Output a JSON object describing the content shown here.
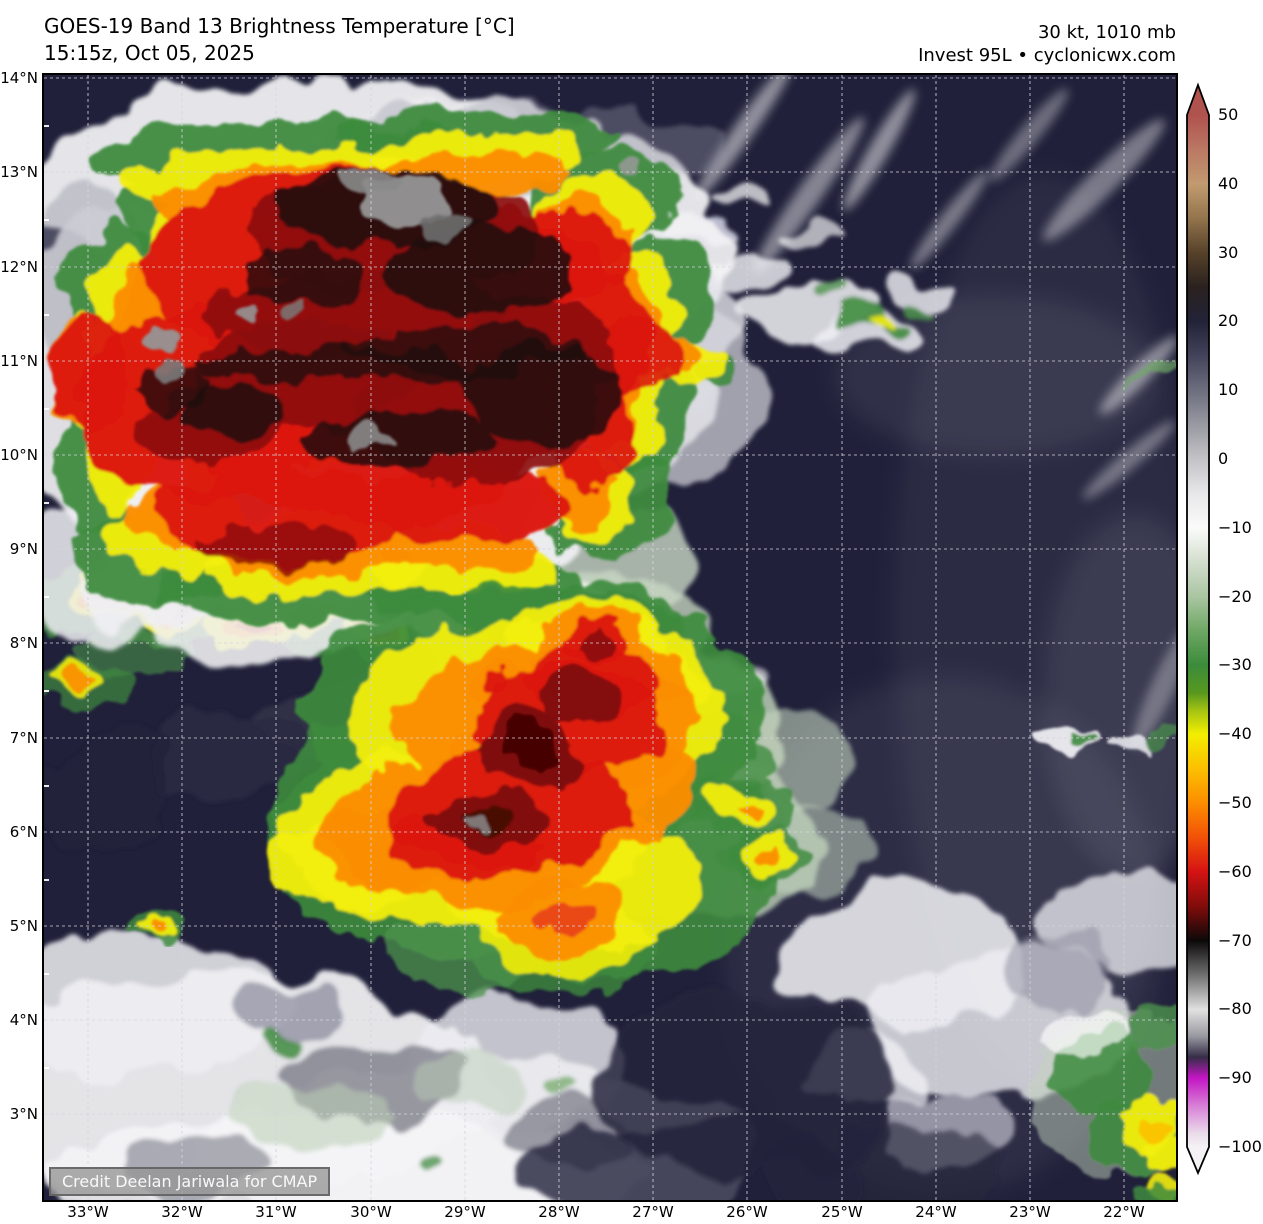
{
  "header": {
    "title": "GOES-19 Band 13 Brightness Temperature [°C]",
    "subtitle": "15:15z, Oct 05, 2025",
    "storm_intensity": "30 kt, 1010 mb",
    "storm_name": "Invest 95L • cyclonicwx.com"
  },
  "map": {
    "credit": "Credit Deelan Jariwala for CMAP",
    "lat_labels": [
      "14°N",
      "13°N",
      "12°N",
      "11°N",
      "10°N",
      "9°N",
      "8°N",
      "7°N",
      "6°N",
      "5°N",
      "4°N",
      "3°N"
    ],
    "lon_labels": [
      "33°W",
      "32°W",
      "31°W",
      "30°W",
      "29°W",
      "28°W",
      "27°W",
      "26°W",
      "25°W",
      "24°W",
      "23°W",
      "22°W"
    ]
  },
  "colorbar": {
    "units": "°C",
    "min": -100,
    "max": 50,
    "tick_labels": [
      "50",
      "40",
      "30",
      "20",
      "10",
      "0",
      "−10",
      "−20",
      "−30",
      "−40",
      "−50",
      "−60",
      "−70",
      "−80",
      "−90",
      "−100"
    ],
    "stops": [
      {
        "pct": 0,
        "color": "#b0524e"
      },
      {
        "pct": 3.3,
        "color": "#ba7763"
      },
      {
        "pct": 6.7,
        "color": "#c29b70"
      },
      {
        "pct": 10,
        "color": "#93744c"
      },
      {
        "pct": 13.3,
        "color": "#57422a"
      },
      {
        "pct": 16.7,
        "color": "#2a211f"
      },
      {
        "pct": 20,
        "color": "#222238"
      },
      {
        "pct": 23.3,
        "color": "#42435a"
      },
      {
        "pct": 26.7,
        "color": "#6d6e7e"
      },
      {
        "pct": 30,
        "color": "#9899a1"
      },
      {
        "pct": 33.3,
        "color": "#c3c3c7"
      },
      {
        "pct": 36.7,
        "color": "#e7e7e9"
      },
      {
        "pct": 40,
        "color": "#fbfbfb"
      },
      {
        "pct": 43.3,
        "color": "#d3decd"
      },
      {
        "pct": 46.7,
        "color": "#a9c5a1"
      },
      {
        "pct": 50,
        "color": "#6ea764"
      },
      {
        "pct": 53.3,
        "color": "#3b8b3b"
      },
      {
        "pct": 56,
        "color": "#58981f"
      },
      {
        "pct": 57.8,
        "color": "#a8c512"
      },
      {
        "pct": 60,
        "color": "#f2ee00"
      },
      {
        "pct": 63.3,
        "color": "#fcc000"
      },
      {
        "pct": 66.7,
        "color": "#fc8d00"
      },
      {
        "pct": 70,
        "color": "#f25108"
      },
      {
        "pct": 73.3,
        "color": "#d51313"
      },
      {
        "pct": 76.7,
        "color": "#7f0c0a"
      },
      {
        "pct": 80,
        "color": "#0c0909"
      },
      {
        "pct": 83.3,
        "color": "#6f6f6f"
      },
      {
        "pct": 86.7,
        "color": "#e1e1e1"
      },
      {
        "pct": 89.3,
        "color": "#97979f"
      },
      {
        "pct": 91.3,
        "color": "#352d47"
      },
      {
        "pct": 93.3,
        "color": "#c316c3"
      },
      {
        "pct": 96,
        "color": "#d77fd7"
      },
      {
        "pct": 98.7,
        "color": "#eadcea"
      },
      {
        "pct": 100,
        "color": "#f4f2f4"
      }
    ]
  },
  "colors": {
    "ocean_background": "#20203a",
    "cold_cloud_red": "#dc1812",
    "cold_cloud_orange": "#fb8d00",
    "cold_cloud_yellow": "#f2ee0a",
    "cold_cloud_green": "#3e8b3e",
    "overshoot_gray": "#969696",
    "low_cloud_white": "#f4f4f6"
  }
}
